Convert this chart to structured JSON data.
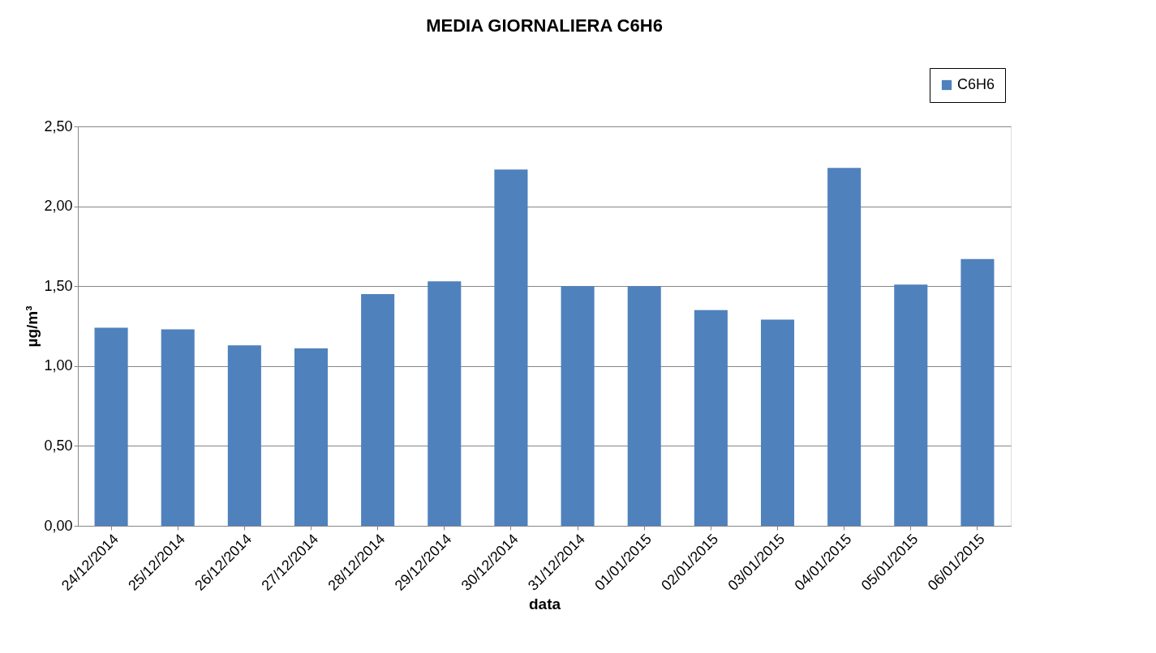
{
  "chart_data": {
    "type": "bar",
    "title": "MEDIA GIORNALIERA C6H6",
    "xlabel": "data",
    "ylabel": "µg/m³",
    "categories": [
      "24/12/2014",
      "25/12/2014",
      "26/12/2014",
      "27/12/2014",
      "28/12/2014",
      "29/12/2014",
      "30/12/2014",
      "31/12/2014",
      "01/01/2015",
      "02/01/2015",
      "03/01/2015",
      "04/01/2015",
      "05/01/2015",
      "06/01/2015"
    ],
    "series": [
      {
        "name": "C6H6",
        "color": "#4f81bd",
        "values": [
          1.24,
          1.23,
          1.13,
          1.11,
          1.45,
          1.53,
          2.23,
          1.5,
          1.5,
          1.35,
          1.29,
          2.24,
          1.51,
          1.67
        ]
      }
    ],
    "ylim": [
      0,
      2.5
    ],
    "yticks": [
      {
        "value": 0,
        "label": "0,00"
      },
      {
        "value": 0.5,
        "label": "0,50"
      },
      {
        "value": 1,
        "label": "1,00"
      },
      {
        "value": 1.5,
        "label": "1,50"
      },
      {
        "value": 2,
        "label": "2,00"
      },
      {
        "value": 2.5,
        "label": "2,50"
      }
    ],
    "grid": "y",
    "legend": "top right"
  }
}
